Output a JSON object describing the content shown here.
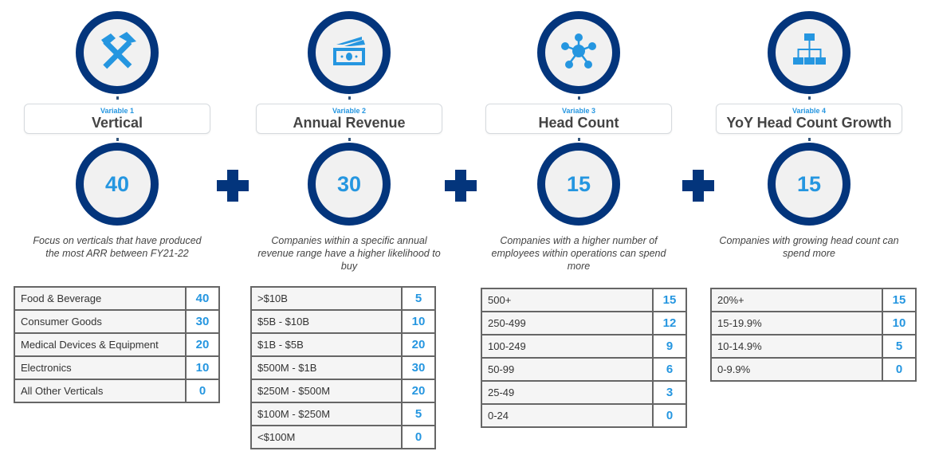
{
  "colors": {
    "ring": "#03357c",
    "accent": "#2596e0",
    "fill": "#f1f1f1"
  },
  "variables": [
    {
      "kicker": "Variable 1",
      "title": "Vertical",
      "icon": "hammer-pick-icon",
      "weight": "40",
      "description": "Focus on verticals that have produced the most ARR between FY21-22",
      "rows": [
        {
          "label": "Food & Beverage",
          "value": "40"
        },
        {
          "label": "Consumer Goods",
          "value": "30"
        },
        {
          "label": "Medical Devices & Equipment",
          "value": "20"
        },
        {
          "label": "Electronics",
          "value": "10"
        },
        {
          "label": "All Other Verticals",
          "value": "0"
        }
      ]
    },
    {
      "kicker": "Variable 2",
      "title": "Annual Revenue",
      "icon": "money-bills-icon",
      "weight": "30",
      "description": "Companies within a specific annual revenue range have a higher likelihood to buy",
      "rows": [
        {
          "label": ">$10B",
          "value": "5"
        },
        {
          "label": "$5B - $10B",
          "value": "10"
        },
        {
          "label": "$1B - $5B",
          "value": "20"
        },
        {
          "label": "$500M - $1B",
          "value": "30"
        },
        {
          "label": "$250M - $500M",
          "value": "20"
        },
        {
          "label": "$100M - $250M",
          "value": "5"
        },
        {
          "label": "<$100M",
          "value": "0"
        }
      ]
    },
    {
      "kicker": "Variable 3",
      "title": "Head Count",
      "icon": "people-network-icon",
      "weight": "15",
      "description": "Companies with a higher number of employees within operations can spend more",
      "rows": [
        {
          "label": "500+",
          "value": "15"
        },
        {
          "label": "250-499",
          "value": "12"
        },
        {
          "label": "100-249",
          "value": "9"
        },
        {
          "label": "50-99",
          "value": "6"
        },
        {
          "label": "25-49",
          "value": "3"
        },
        {
          "label": "0-24",
          "value": "0"
        }
      ]
    },
    {
      "kicker": "Variable 4",
      "title": "YoY Head Count Growth",
      "icon": "org-chart-icon",
      "weight": "15",
      "description": "Companies with growing head count can spend more",
      "rows": [
        {
          "label": "20%+",
          "value": "15"
        },
        {
          "label": "15-19.9%",
          "value": "10"
        },
        {
          "label": "10-14.9%",
          "value": "5"
        },
        {
          "label": "0-9.9%",
          "value": "0"
        }
      ]
    }
  ]
}
